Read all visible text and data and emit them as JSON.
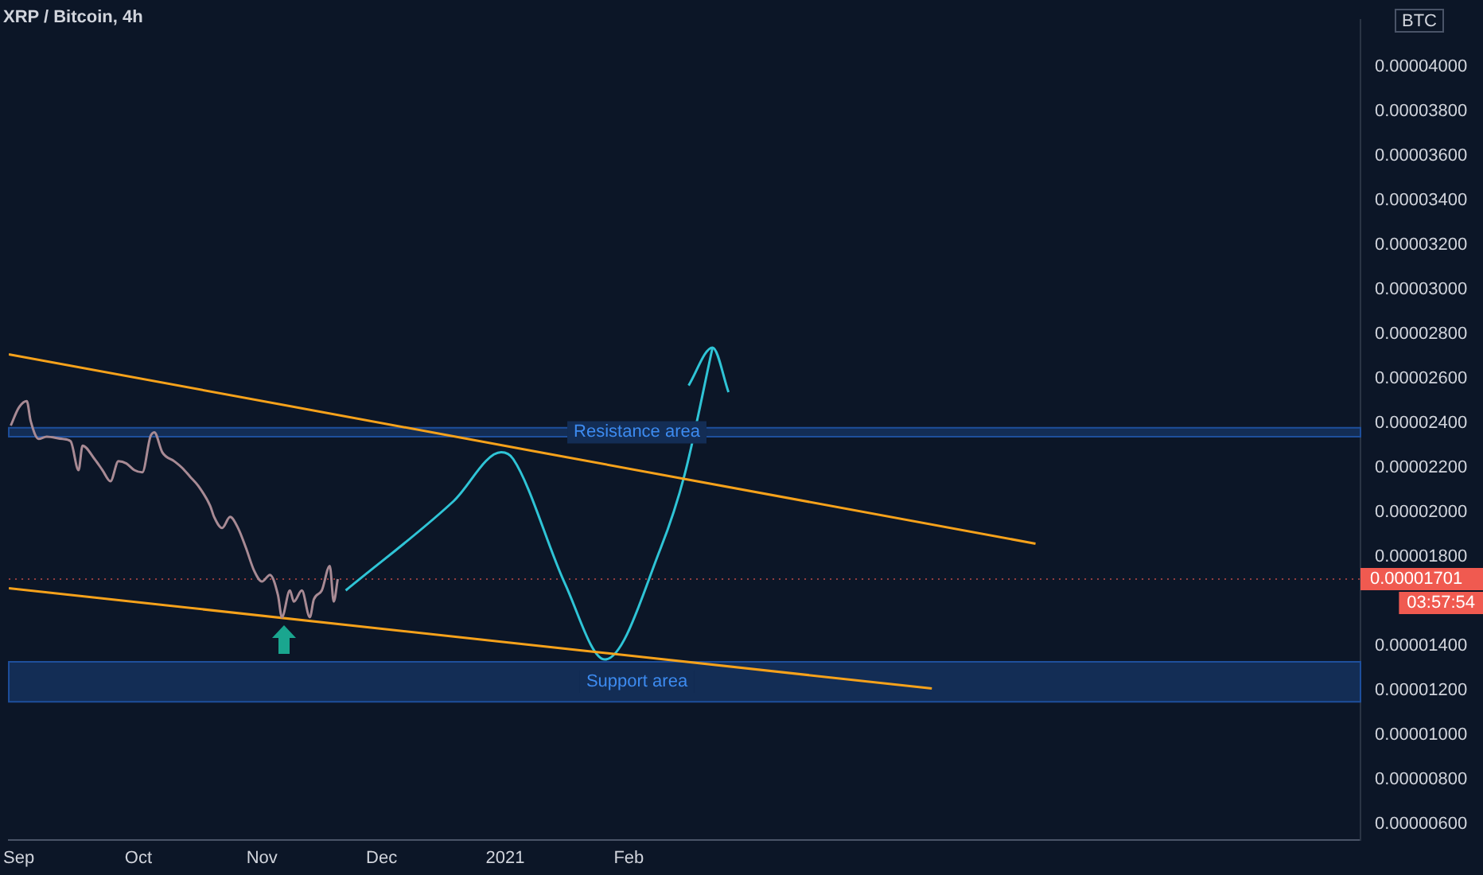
{
  "chart_data": {
    "type": "line",
    "title": "XRP / Bitcoin, 4h",
    "xlim": [
      "2020-08-29T12:00",
      "2021-08-03T12:00"
    ],
    "xticks": [
      {
        "value": "2020-09-01",
        "label": "Sep"
      },
      {
        "value": "2020-10-01",
        "label": "Oct"
      },
      {
        "value": "2020-11-01",
        "label": "Nov"
      },
      {
        "value": "2020-12-01",
        "label": "Dec"
      },
      {
        "value": "2021-01-01",
        "label": "2021"
      },
      {
        "value": "2021-02-01",
        "label": "Feb"
      }
    ],
    "ylim": [
      5.3e-06,
      4.21e-05
    ],
    "yticks": [
      {
        "value": 6e-06,
        "label": "0.00000600"
      },
      {
        "value": 8e-06,
        "label": "0.00000800"
      },
      {
        "value": 1e-05,
        "label": "0.00001000"
      },
      {
        "value": 1.2e-05,
        "label": "0.00001200"
      },
      {
        "value": 1.4e-05,
        "label": "0.00001400"
      },
      {
        "value": 1.8e-05,
        "label": "0.00001800"
      },
      {
        "value": 2e-05,
        "label": "0.00002000"
      },
      {
        "value": 2.2e-05,
        "label": "0.00002200"
      },
      {
        "value": 2.4e-05,
        "label": "0.00002400"
      },
      {
        "value": 2.6e-05,
        "label": "0.00002600"
      },
      {
        "value": 2.8e-05,
        "label": "0.00002800"
      },
      {
        "value": 3e-05,
        "label": "0.00003000"
      },
      {
        "value": 3.2e-05,
        "label": "0.00003200"
      },
      {
        "value": 3.4e-05,
        "label": "0.00003400"
      },
      {
        "value": 3.6e-05,
        "label": "0.00003600"
      },
      {
        "value": 3.8e-05,
        "label": "0.00003800"
      },
      {
        "value": 4e-05,
        "label": "0.00004000"
      }
    ],
    "legend": false,
    "marker": "none",
    "series": [
      {
        "color": "#a88a94",
        "x": [
          "2020-08-30",
          "2020-09-01",
          "2020-09-03",
          "2020-09-04",
          "2020-09-06",
          "2020-09-08",
          "2020-09-12",
          "2020-09-14",
          "2020-09-16",
          "2020-09-17",
          "2020-09-20",
          "2020-09-22",
          "2020-09-24",
          "2020-09-26",
          "2020-09-28",
          "2020-09-30",
          "2020-10-02",
          "2020-10-04",
          "2020-10-05",
          "2020-10-07",
          "2020-10-10",
          "2020-10-12",
          "2020-10-14",
          "2020-10-16",
          "2020-10-19",
          "2020-10-20",
          "2020-10-22",
          "2020-10-24",
          "2020-10-26",
          "2020-10-28",
          "2020-10-30",
          "2020-11-01",
          "2020-11-03",
          "2020-11-05",
          "2020-11-06",
          "2020-11-08",
          "2020-11-09",
          "2020-11-11",
          "2020-11-13",
          "2020-11-14",
          "2020-11-16",
          "2020-11-18",
          "2020-11-19",
          "2020-11-20"
        ],
        "values": [
          2.39e-05,
          2.47e-05,
          2.5e-05,
          2.41e-05,
          2.33e-05,
          2.34e-05,
          2.33e-05,
          2.32e-05,
          2.19e-05,
          2.3e-05,
          2.24e-05,
          2.19e-05,
          2.14e-05,
          2.23e-05,
          2.22e-05,
          2.19e-05,
          2.18e-05,
          2.34e-05,
          2.36e-05,
          2.27e-05,
          2.23e-05,
          2.2e-05,
          2.16e-05,
          2.12e-05,
          2.03e-05,
          1.98e-05,
          1.93e-05,
          1.98e-05,
          1.93e-05,
          1.84e-05,
          1.74e-05,
          1.69e-05,
          1.72e-05,
          1.63e-05,
          1.53e-05,
          1.65e-05,
          1.6e-05,
          1.65e-05,
          1.53e-05,
          1.61e-05,
          1.65e-05,
          1.76e-05,
          1.6e-05,
          1.701e-05
        ]
      },
      {
        "color": "#f7a21b",
        "x": [
          "2020-08-29T12:00",
          "2021-05-14"
        ],
        "values": [
          2.71e-05,
          1.86e-05
        ]
      },
      {
        "color": "#f7a21b",
        "x": [
          "2020-08-29T12:00",
          "2021-04-18"
        ],
        "values": [
          1.66e-05,
          1.21e-05
        ]
      },
      {
        "color": "#2fc4d6",
        "x": [
          "2020-11-22",
          "2020-12-19",
          "2020-12-31",
          "2021-01-03",
          "2021-01-16",
          "2021-01-26",
          "2021-02-09",
          "2021-02-15",
          "2021-02-22"
        ],
        "values": [
          1.65e-05,
          2.05e-05,
          2.27e-05,
          2.24e-05,
          1.68e-05,
          1.34e-05,
          1.84e-05,
          2.17e-05,
          2.74e-05
        ]
      },
      {
        "color": "#2fc4d6",
        "x": [
          "2021-02-16",
          "2021-02-22",
          "2021-02-26"
        ],
        "values": [
          2.57e-05,
          2.74e-05,
          2.54e-05
        ]
      }
    ],
    "bands": [
      {
        "axis": "y",
        "from": 2.34e-05,
        "to": 2.38e-05,
        "label": "Resistance area",
        "color": "#1e4f9c"
      },
      {
        "axis": "y",
        "from": 1.15e-05,
        "to": 1.33e-05,
        "label": "Support area",
        "color": "#1e4f9c"
      }
    ],
    "ref_lines": [
      {
        "axis": "y",
        "value": 1.701e-05,
        "label": "0.00001701",
        "color": "#f05a50",
        "line_style": "dotted"
      }
    ],
    "annotations": [
      "03:57:54",
      "BTC"
    ]
  }
}
